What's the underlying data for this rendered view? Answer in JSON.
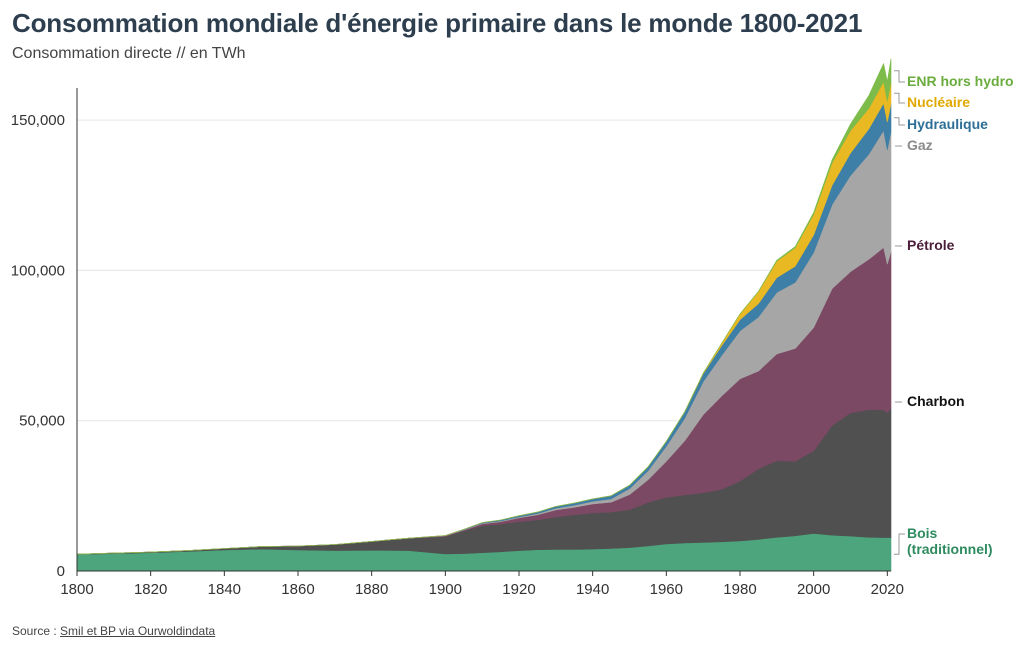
{
  "header": {
    "title": "Consommation mondiale d'énergie primaire dans le monde 1800-2021",
    "subtitle": "Consommation directe // en TWh"
  },
  "footer": {
    "source_prefix": "Source : ",
    "source_link": "Smil et BP via Ourwoldindata"
  },
  "chart_data": {
    "type": "area",
    "stacked": true,
    "title": "Consommation mondiale d'énergie primaire dans le monde 1800-2021",
    "subtitle": "Consommation directe // en TWh",
    "xlabel": "",
    "ylabel": "",
    "xlim": [
      1800,
      2021
    ],
    "ylim": [
      0,
      160000
    ],
    "x_ticks": [
      "1800",
      "1820",
      "1840",
      "1860",
      "1880",
      "1900",
      "1920",
      "1940",
      "1960",
      "1980",
      "2000",
      "2020"
    ],
    "y_ticks": [
      "0",
      "50,000",
      "100,000",
      "150,000"
    ],
    "grid": "horizontal",
    "legend": "direct-labels-right",
    "x": [
      1800,
      1810,
      1820,
      1830,
      1840,
      1850,
      1860,
      1870,
      1880,
      1890,
      1900,
      1905,
      1910,
      1915,
      1920,
      1925,
      1930,
      1935,
      1940,
      1945,
      1950,
      1955,
      1960,
      1965,
      1970,
      1975,
      1980,
      1985,
      1990,
      1995,
      2000,
      2005,
      2010,
      2015,
      2019,
      2020,
      2021
    ],
    "series": [
      {
        "name": "Bois (traditionnel)",
        "color": "#4ca57d",
        "values": [
          5500,
          5800,
          6100,
          6500,
          7000,
          7300,
          7000,
          6800,
          6900,
          6800,
          5700,
          5800,
          6100,
          6400,
          6800,
          7100,
          7200,
          7200,
          7300,
          7500,
          7800,
          8300,
          9000,
          9300,
          9500,
          9700,
          10000,
          10500,
          11200,
          11700,
          12500,
          11900,
          11600,
          11200,
          11100,
          11100,
          11100
        ]
      },
      {
        "name": "Charbon",
        "color": "#505050",
        "values": [
          100,
          150,
          200,
          300,
          500,
          800,
          1300,
          2000,
          2900,
          4000,
          5800,
          7500,
          9000,
          9200,
          9600,
          9900,
          10800,
          11500,
          12000,
          12100,
          12600,
          14500,
          15500,
          16000,
          16500,
          17500,
          19900,
          23500,
          25500,
          24800,
          27500,
          36500,
          41000,
          42500,
          42500,
          41500,
          43100
        ]
      },
      {
        "name": "Pétrole",
        "color": "#7b4964",
        "values": [
          0,
          0,
          0,
          0,
          0,
          0,
          0,
          10,
          30,
          100,
          200,
          300,
          600,
          800,
          1300,
          1700,
          2300,
          2500,
          3000,
          3300,
          5000,
          7500,
          12000,
          18000,
          26000,
          31000,
          34000,
          32500,
          35500,
          37500,
          41000,
          45500,
          47000,
          50000,
          54000,
          49500,
          52000
        ]
      },
      {
        "name": "Gaz",
        "color": "#a6a6a6",
        "values": [
          0,
          0,
          0,
          0,
          0,
          0,
          0,
          0,
          0,
          0,
          100,
          150,
          200,
          250,
          300,
          400,
          600,
          700,
          900,
          1100,
          2000,
          3000,
          5000,
          7500,
          11000,
          13500,
          16000,
          18000,
          20500,
          22000,
          25000,
          28000,
          32000,
          35000,
          39000,
          38000,
          40000
        ]
      },
      {
        "name": "Hydraulique",
        "color": "#3d7fa6",
        "values": [
          0,
          0,
          0,
          0,
          0,
          0,
          0,
          0,
          0,
          0,
          0,
          100,
          200,
          300,
          400,
          500,
          600,
          700,
          800,
          1000,
          1100,
          1300,
          1600,
          2100,
          2600,
          3200,
          3700,
          4400,
          4900,
          5400,
          5800,
          6400,
          7400,
          8400,
          9000,
          9300,
          9200
        ]
      },
      {
        "name": "Nucléaire",
        "color": "#e8b923",
        "values": [
          0,
          0,
          0,
          0,
          0,
          0,
          0,
          0,
          0,
          0,
          0,
          0,
          0,
          0,
          0,
          0,
          0,
          0,
          0,
          0,
          0,
          0,
          0,
          50,
          200,
          800,
          1900,
          4000,
          5500,
          6100,
          6900,
          7500,
          7500,
          6800,
          7200,
          6900,
          7000
        ]
      },
      {
        "name": "ENR hors hydro",
        "color": "#7dbb4a",
        "values": [
          0,
          0,
          0,
          0,
          0,
          0,
          0,
          0,
          0,
          0,
          0,
          0,
          0,
          0,
          0,
          0,
          0,
          0,
          0,
          0,
          0,
          0,
          0,
          0,
          0,
          0,
          20,
          100,
          300,
          400,
          600,
          1000,
          2200,
          4300,
          6000,
          6500,
          8000
        ]
      }
    ]
  }
}
